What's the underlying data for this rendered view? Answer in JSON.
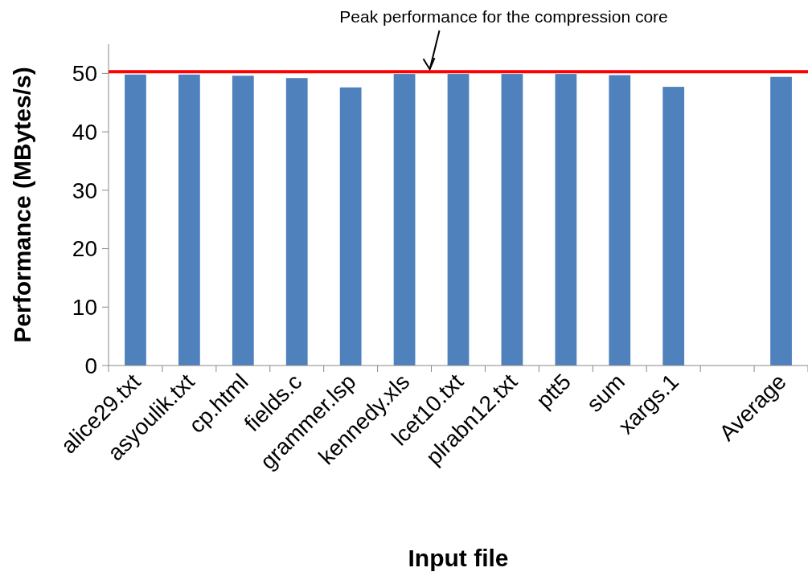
{
  "chart_data": {
    "type": "bar",
    "xlabel": "Input file",
    "ylabel": "Performance (MBytes/s)",
    "categories": [
      "alice29.txt",
      "asyoulik.txt",
      "cp.html",
      "fields.c",
      "grammer.lsp",
      "kennedy.xls",
      "lcet10.txt",
      "plrabn12.txt",
      "ptt5",
      "sum",
      "xargs.1",
      null,
      "Average"
    ],
    "values": [
      49.8,
      49.8,
      49.6,
      49.2,
      47.6,
      49.9,
      49.9,
      49.9,
      49.9,
      49.7,
      47.7,
      null,
      49.4
    ],
    "color": "#4f81bd",
    "ylim": [
      0,
      55
    ],
    "yticks": [
      0,
      10,
      20,
      30,
      40,
      50
    ],
    "grid": false,
    "ref_lines": [
      {
        "axis": "y",
        "value": 50.3,
        "label": "Peak performance for the compression core",
        "color": "#ff0000"
      }
    ]
  }
}
